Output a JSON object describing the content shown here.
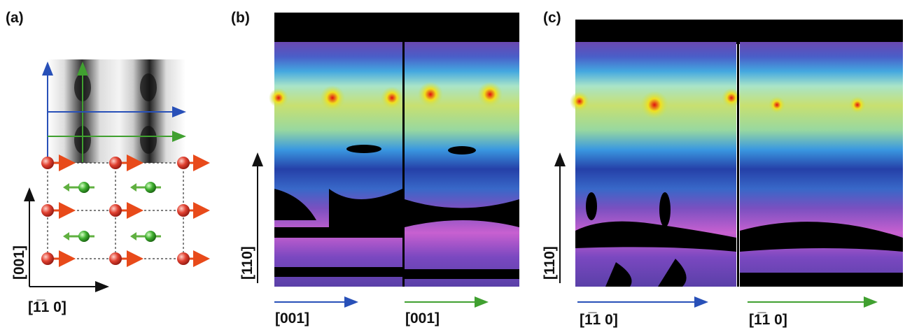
{
  "panels": [
    {
      "label": "(a)",
      "vertical_axis": "[001]",
      "horizontal_axis": "[1̅1 0]"
    },
    {
      "label": "(b)",
      "vertical_axis": "[110]",
      "bottom_axes": [
        "[001]",
        "[001]"
      ]
    },
    {
      "label": "(c)",
      "vertical_axis": "[110]",
      "bottom_axes": [
        "[1̅1 0]",
        "[1̅1 0]"
      ]
    }
  ]
}
